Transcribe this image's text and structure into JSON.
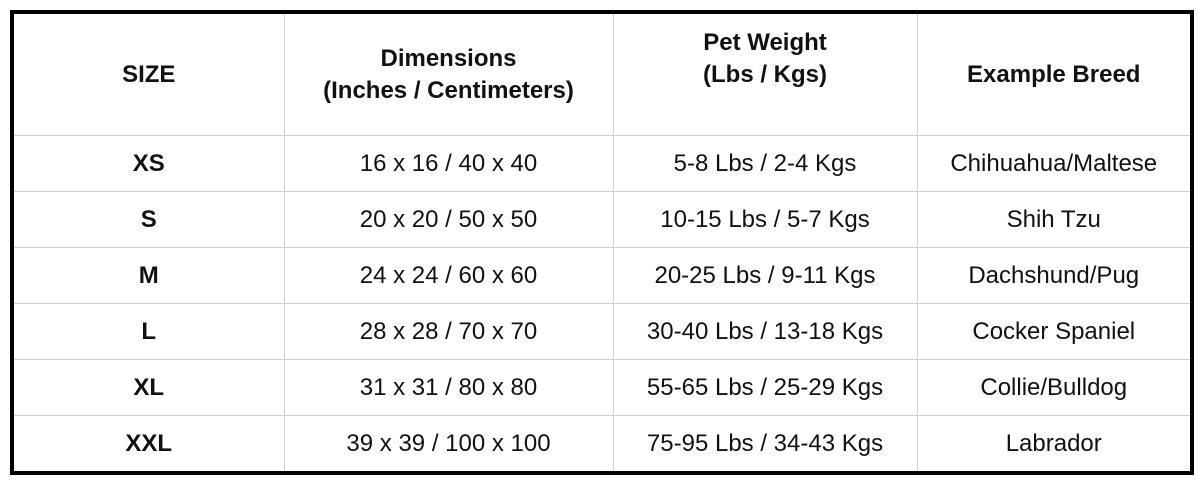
{
  "table": {
    "header": [
      [
        "SIZE"
      ],
      [
        "Dimensions",
        "(Inches / Centimeters)"
      ],
      [
        "Pet Weight",
        "(Lbs / Kgs)"
      ],
      [
        "Example Breed"
      ]
    ],
    "rows": [
      [
        "XS",
        "16 x 16 / 40 x 40",
        "5-8 Lbs / 2-4 Kgs",
        "Chihuahua/Maltese"
      ],
      [
        "S",
        "20 x 20 / 50 x 50",
        "10-15 Lbs / 5-7 Kgs",
        "Shih Tzu"
      ],
      [
        "M",
        "24 x 24 / 60 x 60",
        "20-25 Lbs / 9-11 Kgs",
        "Dachshund/Pug"
      ],
      [
        "L",
        "28 x 28 / 70 x 70",
        "30-40 Lbs / 13-18 Kgs",
        "Cocker Spaniel"
      ],
      [
        "XL",
        "31 x 31 / 80 x 80",
        "55-65 Lbs / 25-29 Kgs",
        "Collie/Bulldog"
      ],
      [
        "XXL",
        "39 x 39 / 100 x 100",
        "75-95 Lbs / 34-43 Kgs",
        "Labrador"
      ]
    ]
  }
}
